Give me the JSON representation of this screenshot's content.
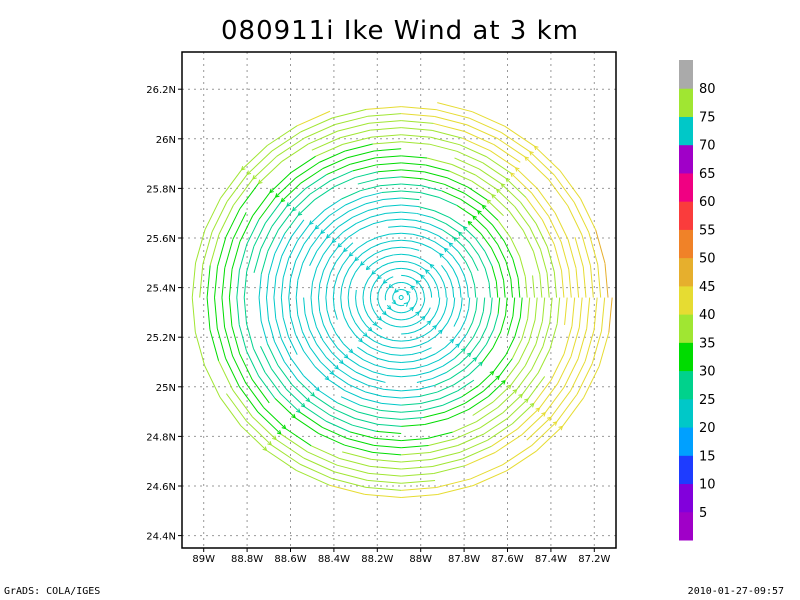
{
  "chart_data": {
    "type": "streamline",
    "title": "080911i Ike Wind at 3 km",
    "x_ticks": [
      "89W",
      "88.8W",
      "88.6W",
      "88.4W",
      "88.2W",
      "88W",
      "87.8W",
      "87.6W",
      "87.4W",
      "87.2W"
    ],
    "y_ticks": [
      "24.4N",
      "24.6N",
      "24.8N",
      "25N",
      "25.2N",
      "25.4N",
      "25.6N",
      "25.8N",
      "26N",
      "26.2N"
    ],
    "xlim": [
      -89.1,
      -87.1
    ],
    "ylim": [
      24.35,
      26.35
    ],
    "grid": true,
    "storm_center": {
      "lon": -88.09,
      "lat": 25.36
    },
    "colorbar": {
      "labels": [
        "5",
        "10",
        "15",
        "20",
        "25",
        "30",
        "35",
        "40",
        "45",
        "50",
        "55",
        "60",
        "65",
        "70",
        "75",
        "80"
      ],
      "colors": [
        "#a000c8",
        "#8200dc",
        "#1e3cff",
        "#00a0ff",
        "#00c8c8",
        "#00d28c",
        "#00dc00",
        "#a0e632",
        "#e6dc32",
        "#e6af2d",
        "#f08228",
        "#fa3c3c",
        "#f00082",
        "#a000c8",
        "#00c8c8",
        "#a0e632",
        "#aaaaaa"
      ]
    }
  },
  "footer": {
    "left": "GrADS: COLA/IGES",
    "right": "2010-01-27-09:57"
  }
}
